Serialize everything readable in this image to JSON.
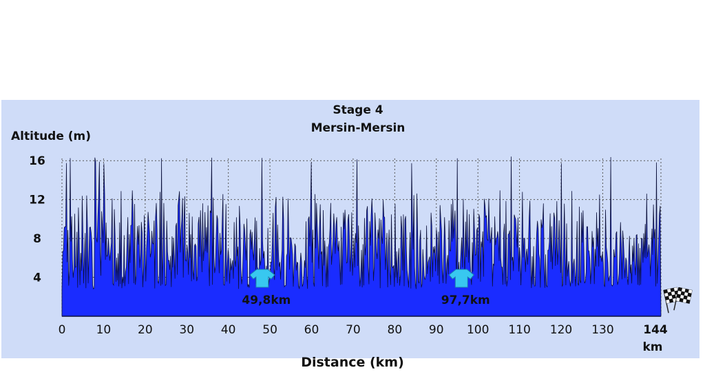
{
  "chart_data": {
    "type": "area",
    "title": "Stage 4",
    "subtitle": "Mersin-Mersin",
    "ylabel": "Altitude (m)",
    "xlabel": "Distance (km)",
    "xunit": "km",
    "xlim": [
      0,
      144
    ],
    "ylim": [
      0,
      18
    ],
    "yticks": [
      4,
      8,
      12,
      16
    ],
    "xticks": [
      0,
      10,
      20,
      30,
      40,
      50,
      60,
      70,
      80,
      90,
      100,
      110,
      120,
      130
    ],
    "x_end_label": "144",
    "grid": true,
    "fill_color": "#1a2cff",
    "line_color": "#0a0f3a",
    "peak_positions_km": [
      1,
      2,
      8,
      9,
      10,
      24,
      36,
      48,
      60,
      71,
      84,
      95,
      108,
      120,
      132,
      143
    ],
    "peak_altitude_m": 16.5,
    "typical_altitude_range_m": [
      3,
      13
    ],
    "base_altitude_m": 2.8,
    "sprints": [
      {
        "label": "49,8km",
        "x": 49.8,
        "icon": "jersey-icon"
      },
      {
        "label": "97,7km",
        "x": 97.7,
        "icon": "jersey-icon"
      }
    ],
    "finish_icon": "checkered-flag-icon"
  }
}
